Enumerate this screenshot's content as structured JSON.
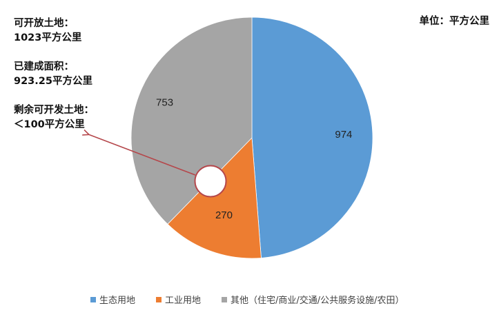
{
  "unit_label": "单位：平方公里",
  "notes": [
    {
      "title": "可开放土地：",
      "value": "1023平方公里"
    },
    {
      "title": "已建成面积：",
      "value": "923.25平方公里"
    },
    {
      "title": "剩余可开发土地：",
      "value": "＜100平方公里"
    }
  ],
  "colors": {
    "blue": "#5b9bd5",
    "orange": "#ed7d31",
    "gray": "#a5a5a5",
    "arrow": "#b5474b"
  },
  "legend": [
    {
      "label": "生态用地",
      "color": "#5b9bd5"
    },
    {
      "label": "工业用地",
      "color": "#ed7d31"
    },
    {
      "label": "其他（住宅/商业/交通/公共服务设施/农田）",
      "color": "#a5a5a5"
    }
  ],
  "chart_data": {
    "type": "pie",
    "title": "",
    "unit": "平方公里",
    "categories": [
      "生态用地",
      "工业用地",
      "其他（住宅/商业/交通/公共服务设施/农田）"
    ],
    "values": [
      974,
      270,
      753
    ],
    "data_labels": [
      "974",
      "270",
      "753"
    ],
    "colors": [
      "#5b9bd5",
      "#ed7d31",
      "#a5a5a5"
    ],
    "start_angle_deg": 0,
    "direction": "clockwise",
    "legend_position": "bottom",
    "annotations": [
      {
        "text": "可开放土地：1023平方公里"
      },
      {
        "text": "已建成面积：923.25平方公里"
      },
      {
        "text": "剩余可开发土地：＜100平方公里",
        "arrow_to": "white circle marker at orange/gray boundary"
      }
    ]
  }
}
